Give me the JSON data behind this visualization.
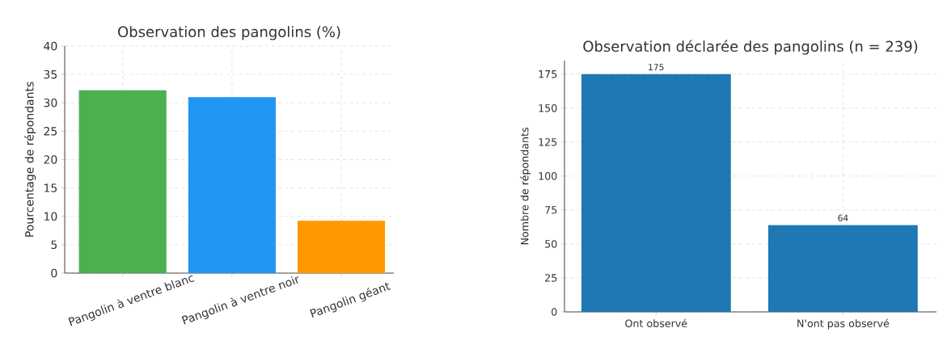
{
  "chart_data": [
    {
      "type": "bar",
      "title": "Observation des pangolins (%)",
      "ylabel": "Pourcentage de répondants",
      "categories": [
        "Pangolin à ventre blanc",
        "Pangolin à ventre noir",
        "Pangolin géant"
      ],
      "values": [
        32.2,
        31.0,
        9.2
      ],
      "colors": [
        "#4caf50",
        "#2196f3",
        "#ff9800"
      ],
      "ylim": [
        0,
        40
      ],
      "yticks": [
        0,
        5,
        10,
        15,
        20,
        25,
        30,
        35,
        40
      ],
      "grid": true
    },
    {
      "type": "bar",
      "title": "Observation déclarée des pangolins (n = 239)",
      "ylabel": "Nombre de répondants",
      "categories": [
        "Ont observé",
        "N'ont pas observé"
      ],
      "values": [
        175,
        64
      ],
      "color": "#1f77b4",
      "ylim": [
        0,
        185
      ],
      "yticks": [
        0,
        25,
        50,
        75,
        100,
        125,
        150,
        175
      ],
      "grid": true,
      "data_labels": true
    }
  ]
}
